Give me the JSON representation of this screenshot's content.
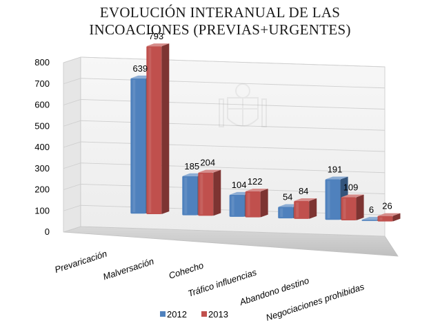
{
  "chart_data": {
    "type": "bar",
    "title_lines": [
      "EVOLUCIÓN INTERANUAL DE LAS",
      "INCOACIONES (PREVIAS+URGENTES)"
    ],
    "categories": [
      "Prevaricación",
      "Malversación",
      "Cohecho",
      "Tráfico influencias",
      "Abandono destino",
      "Negociaciones prohibidas"
    ],
    "series": [
      {
        "name": "2012",
        "values": [
          639,
          185,
          104,
          54,
          191,
          6
        ],
        "color": "#4f81bd"
      },
      {
        "name": "2013",
        "values": [
          793,
          204,
          122,
          84,
          109,
          26
        ],
        "color": "#c0504d"
      }
    ],
    "y_ticks": [
      "0",
      "100",
      "200",
      "300",
      "400",
      "500",
      "600",
      "700",
      "800"
    ],
    "ylim": [
      0,
      800
    ],
    "xlabel": "",
    "ylabel": "",
    "grid": true,
    "legend": "bottom"
  }
}
